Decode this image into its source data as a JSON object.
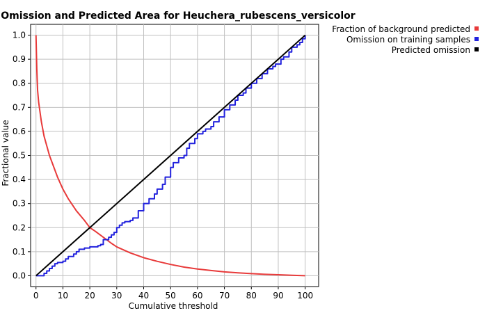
{
  "chart_data": {
    "type": "line",
    "title": "Omission and Predicted Area for Heuchera_rubescens_versicolor",
    "xlabel": "Cumulative threshold",
    "ylabel": "Fractional value",
    "xlim": [
      -2,
      105
    ],
    "ylim": [
      -0.045,
      1.045
    ],
    "xticks": [
      0,
      10,
      20,
      30,
      40,
      50,
      60,
      70,
      80,
      90,
      100
    ],
    "yticks": [
      0.0,
      0.1,
      0.2,
      0.3,
      0.4,
      0.5,
      0.6,
      0.7,
      0.8,
      0.9,
      1.0
    ],
    "grid": true,
    "legend_position": "top-right outside",
    "series": [
      {
        "name": "Fraction of background predicted",
        "color": "#e83a3a",
        "x": [
          0,
          0.3,
          0.6,
          1,
          1.5,
          2,
          3,
          4,
          5,
          6,
          8,
          10,
          12,
          15,
          18,
          20,
          22,
          25,
          28,
          30,
          35,
          40,
          45,
          50,
          55,
          60,
          65,
          70,
          75,
          80,
          85,
          90,
          95,
          100
        ],
        "y": [
          1.0,
          0.86,
          0.77,
          0.72,
          0.68,
          0.64,
          0.58,
          0.54,
          0.5,
          0.47,
          0.41,
          0.36,
          0.32,
          0.27,
          0.23,
          0.2,
          0.185,
          0.16,
          0.135,
          0.12,
          0.095,
          0.075,
          0.06,
          0.047,
          0.036,
          0.028,
          0.022,
          0.016,
          0.012,
          0.009,
          0.006,
          0.004,
          0.002,
          0.0
        ]
      },
      {
        "name": "Omission on training samples",
        "color": "#2222dd",
        "x": [
          0,
          2,
          3,
          4,
          5,
          6,
          7,
          8,
          9,
          10,
          11,
          12,
          14,
          15,
          16,
          18,
          20,
          22,
          23,
          24,
          25,
          26,
          27,
          28,
          29,
          30,
          31,
          32,
          33,
          35,
          36,
          38,
          40,
          42,
          44,
          45,
          47,
          48,
          50,
          51,
          53,
          55,
          56,
          57,
          59,
          60,
          62,
          63,
          65,
          66,
          68,
          70,
          72,
          74,
          75,
          77,
          78,
          80,
          82,
          84,
          86,
          88,
          89,
          91,
          92,
          94,
          95,
          97,
          98,
          99,
          100
        ],
        "y": [
          0.0,
          0.0,
          0.01,
          0.02,
          0.03,
          0.04,
          0.05,
          0.055,
          0.055,
          0.06,
          0.07,
          0.08,
          0.09,
          0.1,
          0.11,
          0.115,
          0.12,
          0.12,
          0.125,
          0.13,
          0.15,
          0.15,
          0.16,
          0.17,
          0.18,
          0.2,
          0.21,
          0.22,
          0.225,
          0.23,
          0.24,
          0.27,
          0.3,
          0.32,
          0.34,
          0.36,
          0.38,
          0.41,
          0.45,
          0.47,
          0.49,
          0.5,
          0.53,
          0.55,
          0.57,
          0.59,
          0.6,
          0.61,
          0.62,
          0.64,
          0.66,
          0.69,
          0.71,
          0.73,
          0.75,
          0.76,
          0.78,
          0.8,
          0.82,
          0.84,
          0.86,
          0.87,
          0.88,
          0.9,
          0.91,
          0.93,
          0.95,
          0.96,
          0.97,
          0.985,
          1.0
        ]
      },
      {
        "name": "Predicted omission",
        "color": "#000000",
        "x": [
          0,
          100
        ],
        "y": [
          0.0,
          1.0
        ]
      }
    ]
  }
}
